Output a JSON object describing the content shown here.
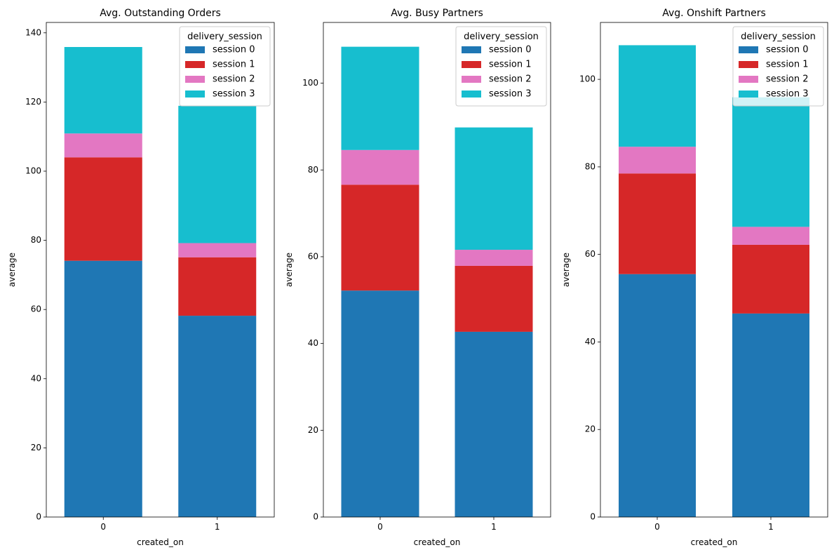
{
  "chart_data": [
    {
      "type": "bar",
      "stacked": true,
      "title": "Avg. Outstanding Orders",
      "xlabel": "created_on",
      "ylabel": "average",
      "categories": [
        "0",
        "1"
      ],
      "ylim": [
        0,
        143
      ],
      "yticks": [
        0,
        20,
        40,
        60,
        80,
        100,
        120,
        140
      ],
      "legend_title": "delivery_session",
      "legend_position": "top-right",
      "series": [
        {
          "name": "session 0",
          "color": "#1f77b4",
          "values": [
            74.1,
            58.2
          ]
        },
        {
          "name": "session 1",
          "color": "#d62728",
          "values": [
            29.9,
            16.9
          ]
        },
        {
          "name": "session 2",
          "color": "#e377c2",
          "values": [
            6.9,
            4.1
          ]
        },
        {
          "name": "session 3",
          "color": "#17becf",
          "values": [
            25.0,
            39.7
          ]
        }
      ]
    },
    {
      "type": "bar",
      "stacked": true,
      "title": "Avg. Busy Partners",
      "xlabel": "created_on",
      "ylabel": "average",
      "categories": [
        "0",
        "1"
      ],
      "ylim": [
        0,
        114
      ],
      "yticks": [
        0,
        20,
        40,
        60,
        80,
        100
      ],
      "legend_title": "delivery_session",
      "legend_position": "top-right",
      "series": [
        {
          "name": "session 0",
          "color": "#1f77b4",
          "values": [
            52.2,
            42.7
          ]
        },
        {
          "name": "session 1",
          "color": "#d62728",
          "values": [
            24.4,
            15.2
          ]
        },
        {
          "name": "session 2",
          "color": "#e377c2",
          "values": [
            8.0,
            3.7
          ]
        },
        {
          "name": "session 3",
          "color": "#17becf",
          "values": [
            23.8,
            28.2
          ]
        }
      ]
    },
    {
      "type": "bar",
      "stacked": true,
      "title": "Avg. Onshift Partners",
      "xlabel": "created_on",
      "ylabel": "average",
      "categories": [
        "0",
        "1"
      ],
      "ylim": [
        0,
        113
      ],
      "yticks": [
        0,
        20,
        40,
        60,
        80,
        100
      ],
      "legend_title": "delivery_session",
      "legend_position": "top-right",
      "series": [
        {
          "name": "session 0",
          "color": "#1f77b4",
          "values": [
            55.5,
            46.5
          ]
        },
        {
          "name": "session 1",
          "color": "#d62728",
          "values": [
            23.0,
            15.7
          ]
        },
        {
          "name": "session 2",
          "color": "#e377c2",
          "values": [
            6.1,
            4.1
          ]
        },
        {
          "name": "session 3",
          "color": "#17becf",
          "values": [
            23.2,
            29.6
          ]
        }
      ]
    }
  ]
}
